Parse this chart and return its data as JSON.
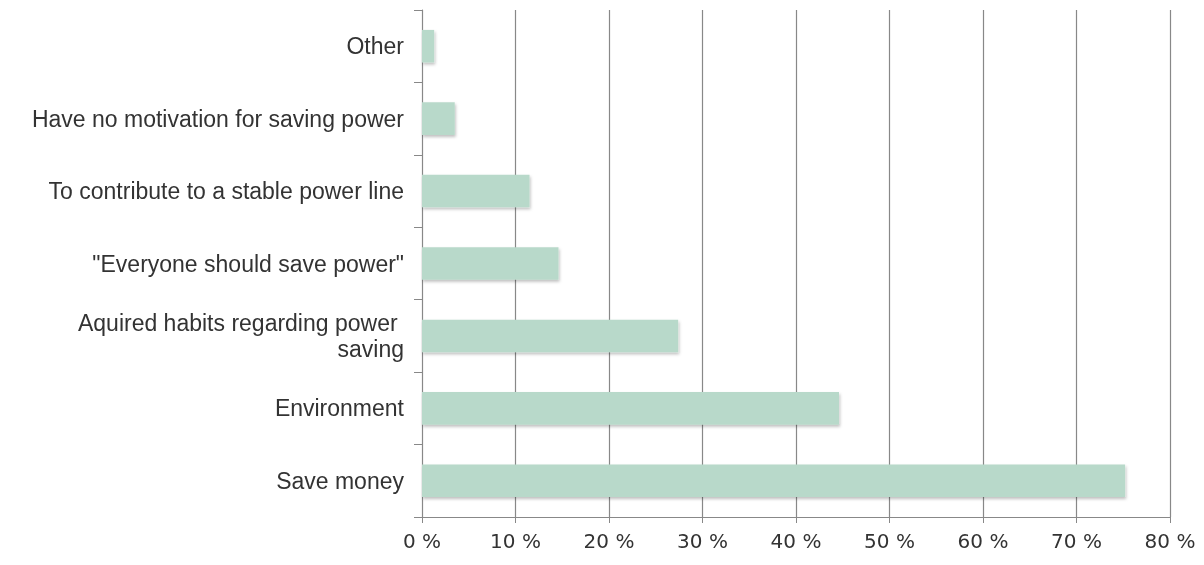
{
  "chart_data": {
    "type": "bar",
    "orientation": "horizontal",
    "categories": [
      "Other",
      "Have no motivation for saving power",
      "To contribute to a stable power line",
      "\"Everyone should save power\"",
      "Aquired habits regarding power saving",
      "Environment",
      "Save money"
    ],
    "values": [
      1.3,
      3.5,
      11.5,
      14.6,
      27.4,
      44.6,
      75.2
    ],
    "color": "#b8d9ca",
    "xlim": [
      0,
      80
    ],
    "xticks": [
      {
        "value": 0,
        "label": "0 %"
      },
      {
        "value": 10,
        "label": "10 %"
      },
      {
        "value": 20,
        "label": "20 %"
      },
      {
        "value": 30,
        "label": "30 %"
      },
      {
        "value": 40,
        "label": "40 %"
      },
      {
        "value": 50,
        "label": "50 %"
      },
      {
        "value": 60,
        "label": "60 %"
      },
      {
        "value": 70,
        "label": "70 %"
      },
      {
        "value": 80,
        "label": "80 %"
      }
    ],
    "grid": "x"
  }
}
